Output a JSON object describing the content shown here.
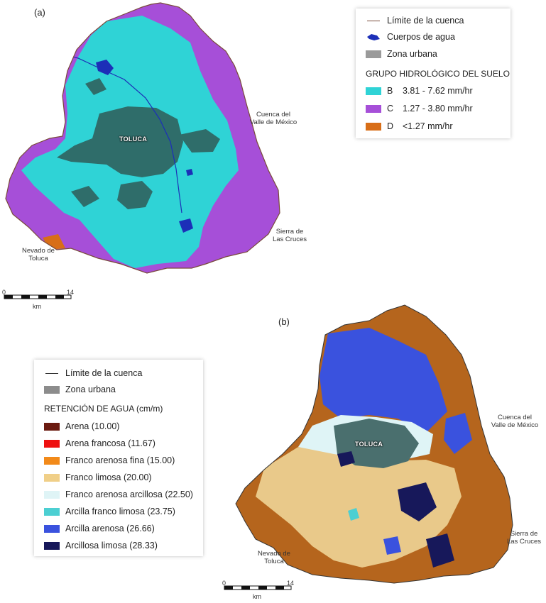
{
  "panel_a": {
    "label": "(a)",
    "city": "TOLUCA",
    "places": {
      "cuenca": [
        "Cuenca del",
        "Valle de México"
      ],
      "sierra": [
        "Sierra de",
        "Las Cruces"
      ],
      "nevado": [
        "Nevado de",
        "Toluca"
      ]
    },
    "legend": {
      "boundary": "Límite de la cuenca",
      "water": "Cuerpos de agua",
      "urban": "Zona urbana",
      "heading": "GRUPO HIDROLÓGICO DEL SUELO",
      "classes": [
        {
          "code": "B",
          "range": "3.81 - 7.62 mm/hr",
          "color": "#2fd3d6"
        },
        {
          "code": "C",
          "range": "1.27 - 3.80 mm/hr",
          "color": "#a64fd8"
        },
        {
          "code": "D",
          "range": "<1.27 mm/hr",
          "color": "#d86e18"
        }
      ]
    },
    "scale": {
      "start": "0",
      "end": "14",
      "unit": "km"
    }
  },
  "panel_b": {
    "label": "(b)",
    "city": "TOLUCA",
    "places": {
      "cuenca": [
        "Cuenca del",
        "Valle de México"
      ],
      "sierra": [
        "Sierra de",
        "Las Cruces"
      ],
      "nevado": [
        "Nevado de",
        "Toluca"
      ]
    },
    "legend": {
      "boundary": "Límite de la cuenca",
      "urban": "Zona urbana",
      "heading": "RETENCIÓN DE AGUA (cm/m)",
      "classes": [
        {
          "label": "Arena (10.00)",
          "color": "#6b1a10"
        },
        {
          "label": "Arena francosa (11.67)",
          "color": "#ee1010"
        },
        {
          "label": "Franco arenosa fina (15.00)",
          "color": "#f28a1a"
        },
        {
          "label": "Franco limosa (20.00)",
          "color": "#f0cf88"
        },
        {
          "label": "Franco arenosa arcillosa (22.50)",
          "color": "#dff4f6"
        },
        {
          "label": "Arcilla franco limosa (23.75)",
          "color": "#4ccfd2"
        },
        {
          "label": "Arcilla arenosa (26.66)",
          "color": "#3a52de"
        },
        {
          "label": "Arcillosa limosa (28.33)",
          "color": "#17185a"
        }
      ]
    },
    "scale": {
      "start": "0",
      "end": "14",
      "unit": "km"
    }
  }
}
